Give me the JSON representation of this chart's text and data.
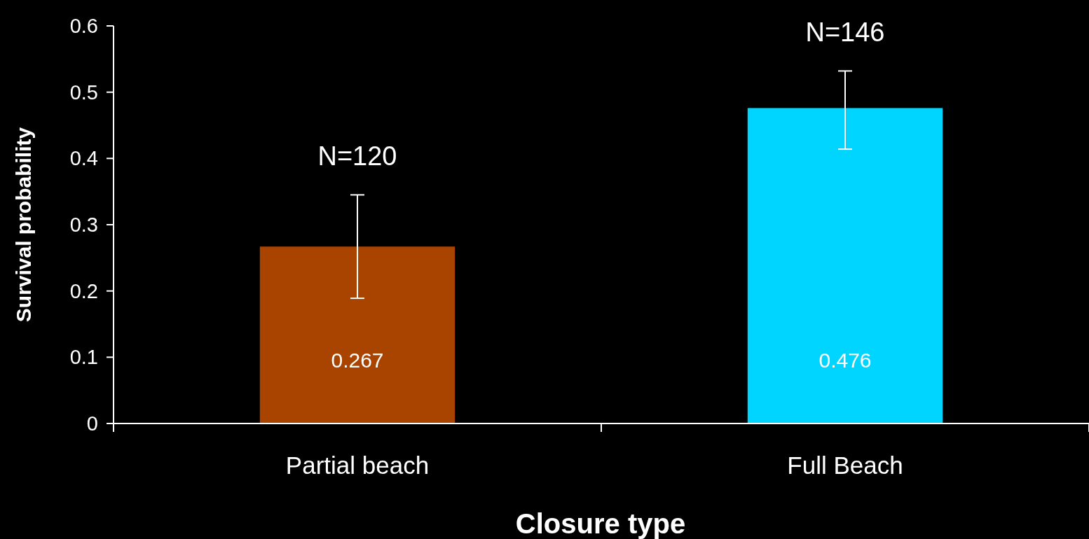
{
  "chart_data": {
    "type": "bar",
    "xlabel": "Closure type",
    "ylabel": "Survival probability",
    "categories": [
      "Partial beach",
      "Full Beach"
    ],
    "values": [
      0.267,
      0.476
    ],
    "colors": [
      "#a84300",
      "#00d5ff"
    ],
    "errors": [
      [
        0.189,
        0.345
      ],
      [
        0.414,
        0.532
      ]
    ],
    "data_labels": true,
    "annotations": [
      "N=120",
      "N=146"
    ],
    "ylim": [
      0,
      0.6
    ],
    "yticks": [
      0,
      0.1,
      0.2,
      0.3,
      0.4,
      0.5,
      0.6
    ],
    "grid": false
  }
}
